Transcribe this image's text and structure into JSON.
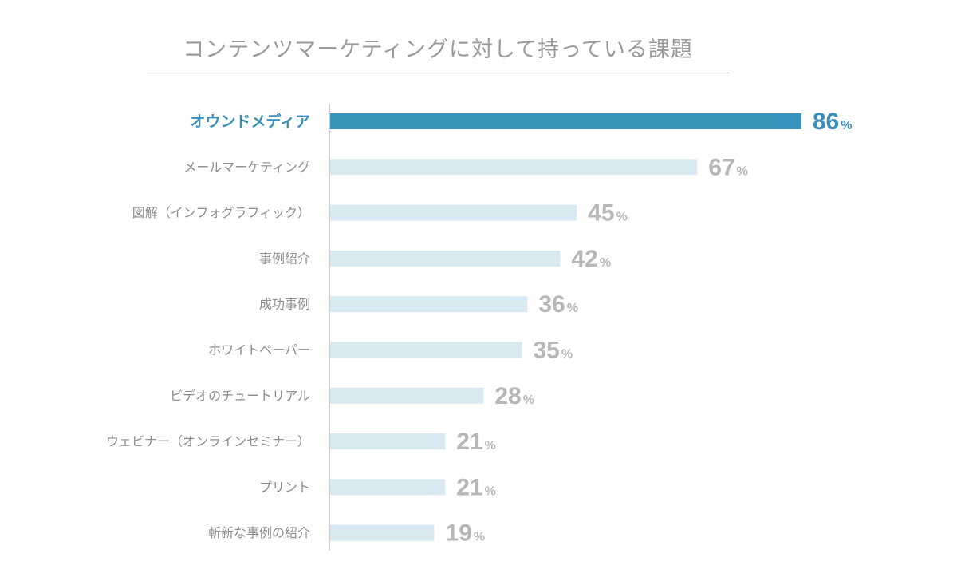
{
  "title": "コンテンツマーケティングに対して持っている課題",
  "colors": {
    "highlight_bar": "#3a93bb",
    "highlight_text": "#3a8fb8",
    "bar": "#d9e9f2",
    "label": "#8c8c8c",
    "value": "#b7b7b7",
    "axis": "#b5b5b5"
  },
  "chart_data": {
    "type": "bar",
    "orientation": "horizontal",
    "title": "コンテンツマーケティングに対して持っている課題",
    "unit": "%",
    "xlim": [
      0,
      100
    ],
    "highlight_index": 0,
    "categories": [
      "オウンドメディア",
      "メールマーケティング",
      "図解（インフォグラフィック）",
      "事例紹介",
      "成功事例",
      "ホワイトペーパー",
      "ビデオのチュートリアル",
      "ウェビナー（オンラインセミナー）",
      "プリント",
      "斬新な事例の紹介"
    ],
    "values": [
      86,
      67,
      45,
      42,
      36,
      35,
      28,
      21,
      21,
      19
    ]
  }
}
